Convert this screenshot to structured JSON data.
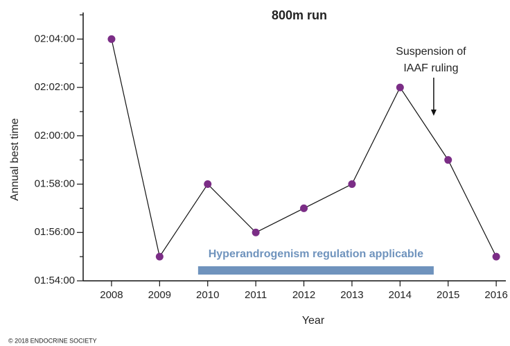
{
  "chart_data": {
    "type": "line",
    "title": "800m run",
    "x_label": "Year",
    "y_label": "Annual best time",
    "x": [
      2008,
      2009,
      2010,
      2011,
      2012,
      2013,
      2014,
      2015,
      2016
    ],
    "series": [
      {
        "name": "Annual best time",
        "color": "#7b2d86",
        "values": [
          124,
          115,
          118,
          116,
          117,
          118,
          122,
          119,
          115
        ]
      }
    ],
    "xlim": [
      2007.41,
      2016.2
    ],
    "xticks": [
      2008,
      2009,
      2010,
      2011,
      2012,
      2013,
      2014,
      2015,
      2016
    ],
    "ylim": [
      114,
      125.1
    ],
    "yticks": [
      {
        "value": 114,
        "label": "01:54:00"
      },
      {
        "value": 116,
        "label": "01:56:00"
      },
      {
        "value": 118,
        "label": "01:58:00"
      },
      {
        "value": 120,
        "label": "02:00:00"
      },
      {
        "value": 122,
        "label": "02:02:00"
      },
      {
        "value": 124,
        "label": "02:04:00"
      }
    ],
    "yminorticks": [
      115,
      117,
      119,
      121,
      123,
      125
    ],
    "span": {
      "label": "Hyperandrogenism regulation applicable",
      "x": [
        2009.8,
        2014.7
      ],
      "color": "#6f93bd"
    },
    "annotation": {
      "lines": [
        "Suspension of",
        "IAAF ruling"
      ],
      "x": 2014.7
    },
    "footer": "© 2018  ENDOCRINE SOCIETY"
  }
}
